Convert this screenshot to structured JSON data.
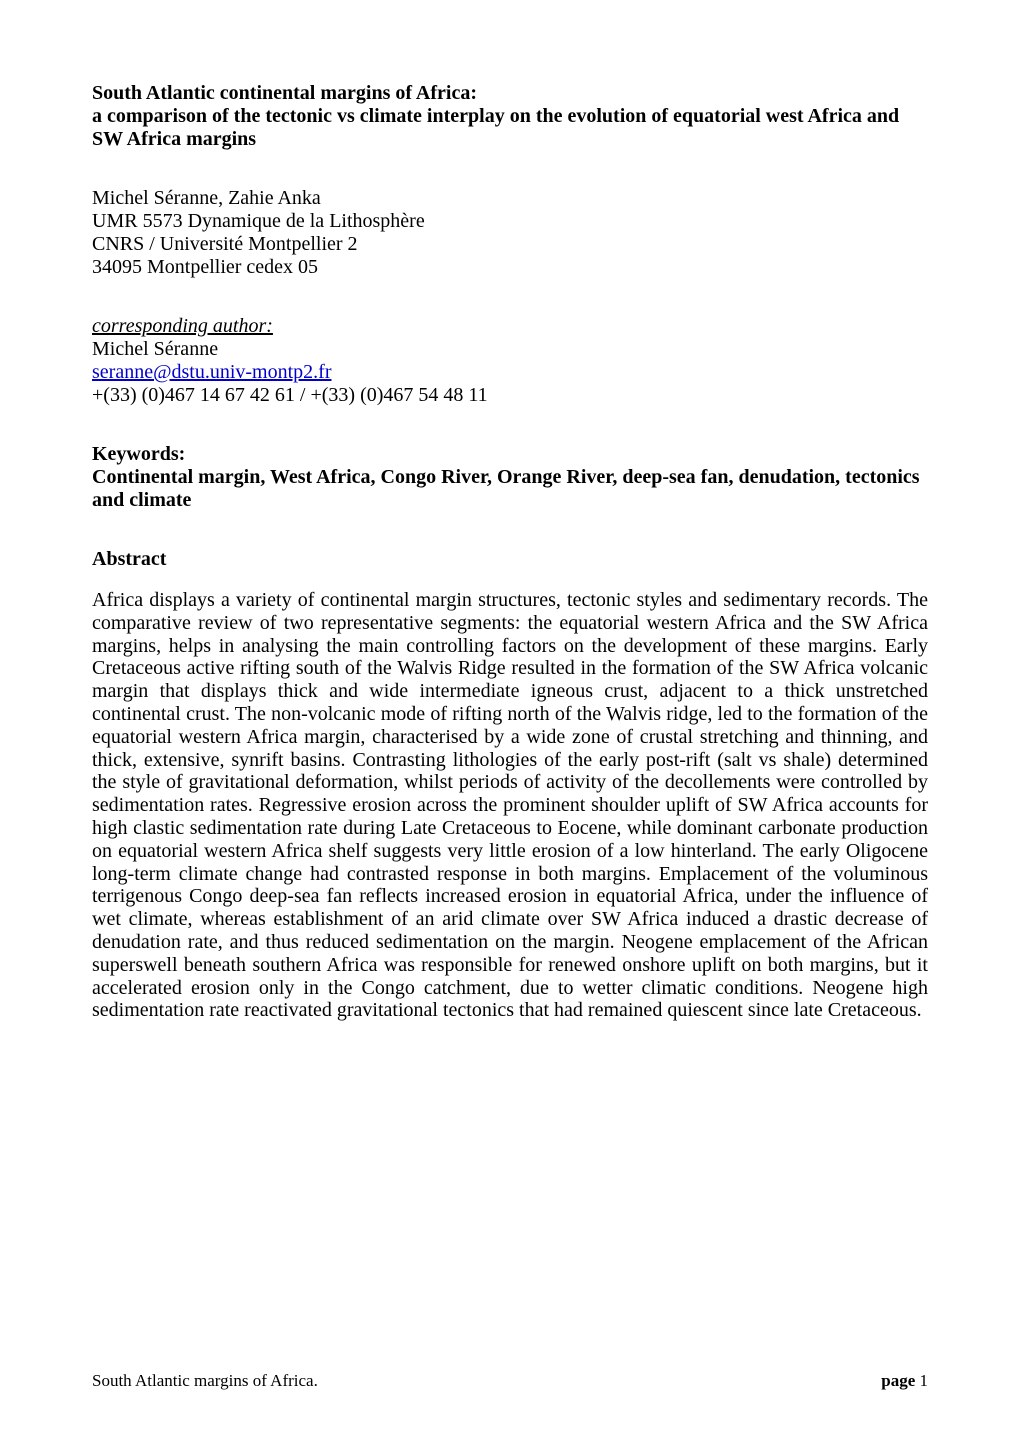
{
  "title": {
    "line1": "South Atlantic continental margins of Africa:",
    "line2": "a comparison of the tectonic vs climate interplay on the evolution of equatorial west Africa and SW Africa margins"
  },
  "authors": {
    "names": "Michel Séranne, Zahie Anka",
    "affil1": "UMR 5573 Dynamique de la Lithosphère",
    "affil2": "CNRS / Université Montpellier 2",
    "affil3": "34095 Montpellier cedex 05"
  },
  "corresponding": {
    "label": "corresponding author:",
    "name": "Michel Séranne",
    "email": "seranne@dstu.univ-montp2.fr",
    "phone": "+(33) (0)467 14 67 42 61 / +(33) (0)467 54 48 11"
  },
  "keywords": {
    "label": "Keywords:",
    "body": "Continental margin, West Africa, Congo River, Orange River, deep-sea fan, denudation, tectonics and climate"
  },
  "abstract": {
    "heading": "Abstract",
    "body": "Africa displays a variety of continental margin structures, tectonic styles and sedimentary records. The comparative review of two representative segments: the equatorial western Africa and the SW Africa margins, helps in analysing the main controlling factors on the development of these margins. Early Cretaceous active rifting south of the Walvis Ridge resulted in the formation of the SW Africa volcanic margin that displays thick and wide intermediate igneous crust, adjacent to a thick unstretched continental crust. The non-volcanic mode of rifting north of the Walvis ridge, led to the formation of the equatorial western Africa margin, characterised by a wide zone of crustal stretching and thinning, and thick, extensive, synrift basins. Contrasting lithologies of the early post-rift (salt vs shale) determined the style of gravitational deformation, whilst periods of activity of the decollements were controlled by sedimentation rates. Regressive erosion across the prominent shoulder uplift of SW Africa accounts for high clastic sedimentation rate during Late Cretaceous to Eocene, while dominant carbonate production on equatorial western Africa shelf suggests very little erosion of a low hinterland. The early Oligocene long-term climate change had contrasted response in both margins. Emplacement of the voluminous terrigenous Congo deep-sea fan reflects increased erosion in equatorial Africa, under the influence of wet climate, whereas establishment of an arid climate over SW Africa induced a drastic decrease of denudation rate, and thus reduced sedimentation on the margin. Neogene emplacement of the African superswell beneath southern Africa was responsible for renewed onshore uplift on both margins, but it accelerated erosion only in the Congo catchment, due to wetter climatic conditions. Neogene high sedimentation rate reactivated gravitational tectonics that had remained quiescent since late Cretaceous."
  },
  "footer": {
    "left": "South Atlantic margins of Africa.",
    "page_label": "page",
    "page_number": "1"
  }
}
